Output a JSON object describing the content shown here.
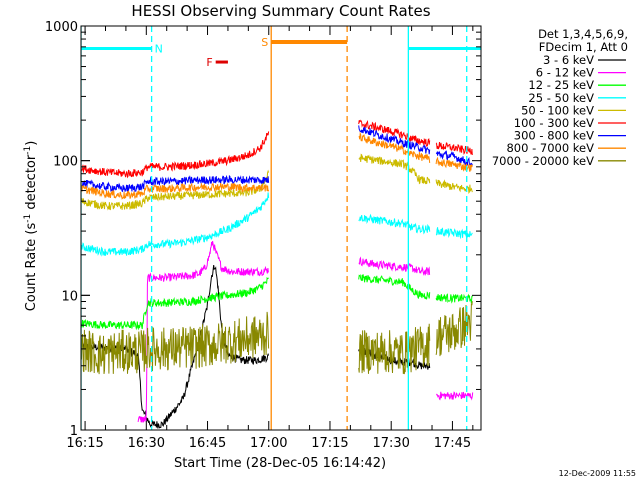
{
  "chart_data": {
    "type": "line",
    "title": "HESSI Observing Summary Count Rates",
    "xlabel": "Start Time (28-Dec-05 16:14:42)",
    "ylabel_main": "Count Rate (s",
    "ylabel_sup1": "-1",
    "ylabel_mid": " detector",
    "ylabel_sup2": "-1",
    "ylabel_end": ")",
    "y_scale": "log",
    "ylim": [
      1,
      1000
    ],
    "xlim_minutes": [
      -1,
      97
    ],
    "x_ticks": [
      {
        "label": "16:15",
        "minute": 0
      },
      {
        "label": "16:30",
        "minute": 15
      },
      {
        "label": "16:45",
        "minute": 30
      },
      {
        "label": "17:00",
        "minute": 45
      },
      {
        "label": "17:15",
        "minute": 60
      },
      {
        "label": "17:30",
        "minute": 75
      },
      {
        "label": "17:45",
        "minute": 90
      }
    ],
    "y_ticks": [
      {
        "label": "1",
        "value": 1
      },
      {
        "label": "10",
        "value": 10
      },
      {
        "label": "100",
        "value": 100
      },
      {
        "label": "1000",
        "value": 1000
      }
    ],
    "legend_header": [
      "Det 1,3,4,5,6,9,",
      "FDecim 1, Att 0"
    ],
    "legend_placement": "right",
    "footer_timestamp": "12-Dec-2009 11:55",
    "gaps": [
      {
        "start": 45,
        "end": 67
      },
      {
        "start": 84.5,
        "end": 86
      }
    ],
    "series": [
      {
        "name": "3 - 6 keV",
        "color": "#000000",
        "points": [
          [
            -1,
            4.2
          ],
          [
            10,
            4.0
          ],
          [
            13,
            3.6
          ],
          [
            14,
            1.4
          ],
          [
            16,
            1.1
          ],
          [
            19,
            1.1
          ],
          [
            21,
            1.3
          ],
          [
            24,
            1.7
          ],
          [
            26,
            2.8
          ],
          [
            28,
            4.6
          ],
          [
            30,
            8.5
          ],
          [
            31,
            14
          ],
          [
            31.8,
            17
          ],
          [
            32.5,
            12
          ],
          [
            33.5,
            5.5
          ],
          [
            35,
            3.6
          ],
          [
            38,
            3.3
          ],
          [
            42,
            3.3
          ],
          [
            45,
            3.5
          ],
          [
            67,
            4.0
          ],
          [
            72,
            3.5
          ],
          [
            75,
            3.3
          ],
          [
            77,
            3.2
          ],
          [
            80,
            3.2
          ],
          [
            82,
            3.0
          ],
          [
            84.5,
            3.0
          ]
        ]
      },
      {
        "name": "6 - 12 keV",
        "color": "#ff00ff",
        "points": [
          [
            13,
            1.2
          ],
          [
            15,
            1.2
          ],
          [
            15.3,
            13.5
          ],
          [
            20,
            13.5
          ],
          [
            26,
            14
          ],
          [
            28,
            14.5
          ],
          [
            29.5,
            16
          ],
          [
            30.5,
            20
          ],
          [
            31.2,
            25
          ],
          [
            32,
            21
          ],
          [
            33.5,
            16
          ],
          [
            36,
            15
          ],
          [
            40,
            15
          ],
          [
            43,
            15
          ],
          [
            45,
            15.5
          ],
          [
            67,
            18
          ],
          [
            71,
            17
          ],
          [
            75,
            16.5
          ],
          [
            78,
            16.2
          ],
          [
            80,
            16
          ],
          [
            82,
            15
          ],
          [
            84.5,
            15
          ],
          [
            86,
            1.8
          ],
          [
            89,
            1.8
          ],
          [
            93,
            1.8
          ],
          [
            95,
            1.8
          ]
        ]
      },
      {
        "name": "12 - 25 keV",
        "color": "#00ff00",
        "points": [
          [
            -1,
            6.2
          ],
          [
            5,
            6.0
          ],
          [
            14,
            6.0
          ],
          [
            15.3,
            8.8
          ],
          [
            20,
            8.8
          ],
          [
            26,
            9.0
          ],
          [
            30,
            9.5
          ],
          [
            35,
            10
          ],
          [
            40,
            10.5
          ],
          [
            43,
            11.5
          ],
          [
            45,
            13
          ],
          [
            67,
            13.5
          ],
          [
            72,
            13
          ],
          [
            75,
            12.8
          ],
          [
            78,
            12.5
          ],
          [
            80,
            11
          ],
          [
            82,
            10
          ],
          [
            84.5,
            10
          ],
          [
            86,
            9.7
          ],
          [
            90,
            9.5
          ],
          [
            93,
            9.5
          ],
          [
            95,
            9.3
          ]
        ]
      },
      {
        "name": "25 - 50 keV",
        "color": "#00ffff",
        "points": [
          [
            -1,
            23
          ],
          [
            5,
            21
          ],
          [
            10,
            21
          ],
          [
            14,
            22
          ],
          [
            15.3,
            24
          ],
          [
            20,
            24
          ],
          [
            25,
            25
          ],
          [
            30,
            27
          ],
          [
            35,
            31
          ],
          [
            40,
            38
          ],
          [
            43,
            45
          ],
          [
            45,
            56
          ],
          [
            67,
            38
          ],
          [
            72,
            36
          ],
          [
            75,
            35
          ],
          [
            78,
            34
          ],
          [
            80,
            32
          ],
          [
            82,
            31
          ],
          [
            84.5,
            31
          ],
          [
            86,
            30
          ],
          [
            90,
            29
          ],
          [
            93,
            28.5
          ],
          [
            95,
            28
          ]
        ]
      },
      {
        "name": "50 - 100 keV",
        "color": "#ccbb00",
        "points": [
          [
            -1,
            50
          ],
          [
            5,
            46
          ],
          [
            10,
            46
          ],
          [
            14,
            48
          ],
          [
            15.3,
            53
          ],
          [
            20,
            54
          ],
          [
            25,
            55
          ],
          [
            30,
            56
          ],
          [
            35,
            57
          ],
          [
            40,
            58
          ],
          [
            43,
            62
          ],
          [
            45,
            80
          ],
          [
            67,
            105
          ],
          [
            72,
            100
          ],
          [
            75,
            97
          ],
          [
            78,
            94
          ],
          [
            80,
            85
          ],
          [
            82,
            72
          ],
          [
            84.5,
            70
          ],
          [
            86,
            68
          ],
          [
            90,
            64
          ],
          [
            93,
            62
          ],
          [
            95,
            62
          ]
        ]
      },
      {
        "name": "100 - 300 keV",
        "color": "#ff0000",
        "points": [
          [
            -1,
            88
          ],
          [
            5,
            82
          ],
          [
            10,
            80
          ],
          [
            14,
            82
          ],
          [
            15.3,
            90
          ],
          [
            20,
            90
          ],
          [
            25,
            92
          ],
          [
            30,
            95
          ],
          [
            35,
            100
          ],
          [
            40,
            110
          ],
          [
            43,
            125
          ],
          [
            45,
            160
          ],
          [
            67,
            190
          ],
          [
            72,
            175
          ],
          [
            75,
            165
          ],
          [
            78,
            155
          ],
          [
            80,
            145
          ],
          [
            82,
            140
          ],
          [
            84.5,
            135
          ],
          [
            86,
            130
          ],
          [
            90,
            125
          ],
          [
            93,
            120
          ],
          [
            95,
            118
          ]
        ]
      },
      {
        "name": "300 - 800 keV",
        "color": "#0000ff",
        "points": [
          [
            -1,
            68
          ],
          [
            5,
            64
          ],
          [
            10,
            62
          ],
          [
            14,
            64
          ],
          [
            15.3,
            70
          ],
          [
            20,
            70
          ],
          [
            25,
            71
          ],
          [
            30,
            72
          ],
          [
            35,
            72
          ],
          [
            40,
            72
          ],
          [
            43,
            72
          ],
          [
            45,
            72
          ],
          [
            67,
            175
          ],
          [
            72,
            155
          ],
          [
            75,
            145
          ],
          [
            78,
            135
          ],
          [
            80,
            130
          ],
          [
            82,
            125
          ],
          [
            84.5,
            118
          ],
          [
            86,
            112
          ],
          [
            90,
            108
          ],
          [
            93,
            100
          ],
          [
            95,
            95
          ]
        ]
      },
      {
        "name": "800 - 7000 keV",
        "color": "#ff8800",
        "points": [
          [
            -1,
            62
          ],
          [
            5,
            57
          ],
          [
            10,
            55
          ],
          [
            14,
            57
          ],
          [
            15.3,
            62
          ],
          [
            20,
            62
          ],
          [
            25,
            63
          ],
          [
            30,
            64
          ],
          [
            35,
            64
          ],
          [
            40,
            63
          ],
          [
            43,
            63
          ],
          [
            45,
            63
          ],
          [
            67,
            150
          ],
          [
            72,
            135
          ],
          [
            75,
            128
          ],
          [
            78,
            120
          ],
          [
            80,
            112
          ],
          [
            82,
            108
          ],
          [
            84.5,
            102
          ],
          [
            86,
            98
          ],
          [
            90,
            94
          ],
          [
            93,
            90
          ],
          [
            95,
            88
          ]
        ]
      },
      {
        "name": "7000 - 20000 keV",
        "color": "#888800",
        "points": [
          [
            -1,
            4.0
          ],
          [
            4,
            3.6
          ],
          [
            8,
            3.8
          ],
          [
            12,
            3.8
          ],
          [
            14,
            3.8
          ],
          [
            15.3,
            4.0
          ],
          [
            20,
            4.0
          ],
          [
            25,
            4.1
          ],
          [
            30,
            4.2
          ],
          [
            35,
            4.5
          ],
          [
            40,
            4.8
          ],
          [
            43,
            5.0
          ],
          [
            45,
            5.2
          ],
          [
            67,
            3.8
          ],
          [
            72,
            3.8
          ],
          [
            75,
            3.8
          ],
          [
            78,
            3.7
          ],
          [
            80,
            3.9
          ],
          [
            82,
            4.1
          ],
          [
            84.5,
            4.4
          ],
          [
            86,
            5.0
          ],
          [
            90,
            5.3
          ],
          [
            93,
            6.0
          ],
          [
            95,
            6.5
          ]
        ]
      }
    ],
    "vertical_markers": [
      {
        "minute": -1,
        "color": "#00ffff",
        "style": "solid"
      },
      {
        "minute": 16.3,
        "color": "#00ffff",
        "style": "dashed"
      },
      {
        "minute": 45.6,
        "color": "#ff8800",
        "style": "solid"
      },
      {
        "minute": 64.2,
        "color": "#ff8800",
        "style": "dashed"
      },
      {
        "minute": 79.2,
        "color": "#00ffff",
        "style": "solid"
      },
      {
        "minute": 93.5,
        "color": "#00ffff",
        "style": "dashed"
      }
    ],
    "flag_bars": [
      {
        "label": "N",
        "color": "#00ffff",
        "ranges": [
          [
            -1,
            16.3
          ],
          [
            79.2,
            97
          ]
        ],
        "value": 680
      },
      {
        "label": "S",
        "color": "#ff8800",
        "ranges": [
          [
            45.6,
            64.2
          ]
        ],
        "value": 760
      },
      {
        "label": "F",
        "color": "#dd0000",
        "ranges": [
          [
            32,
            35
          ]
        ],
        "value": 540
      }
    ]
  }
}
